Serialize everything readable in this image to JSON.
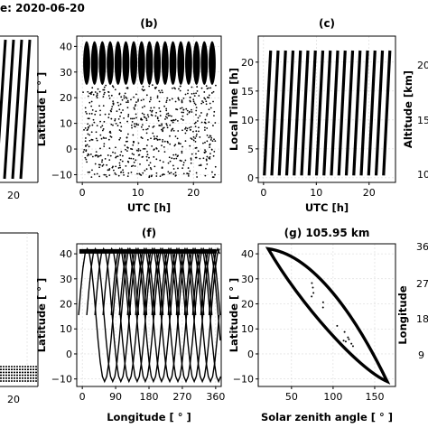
{
  "header": {
    "date_text": "e: 2020-06-20"
  },
  "chart_data": [
    {
      "id": "a",
      "type": "scatter",
      "title": "",
      "xlabel": "",
      "ylabel": "",
      "xticks": [
        "20"
      ],
      "note": "partially visible panel at left edge"
    },
    {
      "id": "b",
      "type": "scatter",
      "title": "(b)",
      "xlabel": "UTC [h]",
      "ylabel": "Latitude [ ° ]",
      "xlim": [
        -1,
        25
      ],
      "ylim": [
        -13,
        44
      ],
      "xticks": [
        0,
        10,
        20
      ],
      "yticks": [
        -10,
        0,
        10,
        20,
        30,
        40
      ],
      "xtick_labels": [
        "0",
        "10",
        "20"
      ],
      "ytick_labels": [
        "−10",
        "0",
        "10",
        "20",
        "30",
        "40"
      ],
      "series": [
        {
          "orbits": 17,
          "lat_range": [
            -11,
            42
          ],
          "dense_lat_min": 25
        }
      ]
    },
    {
      "id": "c",
      "type": "scatter",
      "title": "(c)",
      "xlabel": "UTC [h]",
      "ylabel": "Local Time [h]",
      "xlim": [
        -1,
        25
      ],
      "ylim": [
        -0.8,
        24.5
      ],
      "xticks": [
        0,
        10,
        20
      ],
      "yticks": [
        0,
        5,
        10,
        15,
        20
      ],
      "xtick_labels": [
        "0",
        "10",
        "20"
      ],
      "ytick_labels": [
        "0",
        "5",
        "10",
        "15",
        "20"
      ],
      "series": [
        {
          "strips": 17,
          "local_time_range": [
            0,
            24
          ]
        }
      ]
    },
    {
      "id": "d",
      "type": "scatter",
      "title": "",
      "xlabel": "",
      "ylabel": "Altitude [km]",
      "yticks": [
        "20",
        "15",
        "10"
      ],
      "note": "partially visible panel at right edge"
    },
    {
      "id": "e",
      "type": "scatter",
      "title": "",
      "xlabel": "",
      "ylabel": "",
      "xticks": [
        "20"
      ],
      "note": "partially visible panel at left edge"
    },
    {
      "id": "f",
      "type": "scatter",
      "title": "(f)",
      "xlabel": "Longitude [ ° ]",
      "ylabel": "Latitude [ ° ]",
      "xlim": [
        -15,
        375
      ],
      "ylim": [
        -13,
        44
      ],
      "xticks": [
        0,
        90,
        180,
        270,
        360
      ],
      "yticks": [
        -10,
        0,
        10,
        20,
        30,
        40
      ],
      "xtick_labels": [
        "0",
        "90",
        "180",
        "270",
        "360"
      ],
      "ytick_labels": [
        "−10",
        "0",
        "10",
        "20",
        "30",
        "40"
      ],
      "series": [
        {
          "tracks": 17,
          "lat_range": [
            -11,
            42
          ]
        }
      ]
    },
    {
      "id": "g",
      "type": "scatter",
      "title": "(g) 105.95 km",
      "xlabel": "Solar zenith angle [ ° ]",
      "ylabel": "Latitude [ ° ]",
      "xlim": [
        10,
        175
      ],
      "ylim": [
        -13,
        44
      ],
      "xticks": [
        50,
        100,
        150
      ],
      "yticks": [
        -10,
        0,
        10,
        20,
        30,
        40
      ],
      "xtick_labels": [
        "50",
        "100",
        "150"
      ],
      "ytick_labels": [
        "−10",
        "0",
        "10",
        "20",
        "30",
        "40"
      ],
      "series": [
        {
          "shape": "loop",
          "upper_left": [
            22,
            42
          ],
          "lower_right": [
            165,
            -11
          ]
        }
      ]
    },
    {
      "id": "h",
      "type": "scatter",
      "title": "",
      "xlabel": "",
      "ylabel": "Longitude",
      "yticks": [
        "36",
        "27",
        "18",
        "9"
      ],
      "note": "partially visible panel at right edge"
    }
  ]
}
